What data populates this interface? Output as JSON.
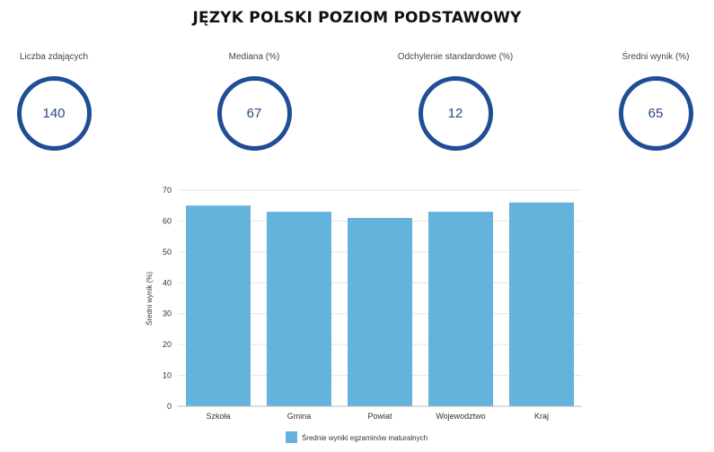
{
  "title": "JĘZYK POLSKI POZIOM PODSTAWOWY",
  "stats": [
    {
      "label": "Liczba zdających",
      "value": "140"
    },
    {
      "label": "Mediana (%)",
      "value": "67"
    },
    {
      "label": "Odchylenie standardowe (%)",
      "value": "12"
    },
    {
      "label": "Średni wynik (%)",
      "value": "65"
    }
  ],
  "colors": {
    "bar": "#63b3dc",
    "ring": "#1f4e96",
    "grid": "#e6e6e6"
  },
  "chart_data": {
    "type": "bar",
    "categories": [
      "Szkoła",
      "Gmina",
      "Powiat",
      "Wojewodztwo",
      "Kraj"
    ],
    "series": [
      {
        "name": "Średnie wyniki egzaminów maturalnych",
        "values": [
          65,
          63,
          61,
          63,
          66
        ]
      }
    ],
    "xlabel": "",
    "ylabel": "Średni wynik (%)",
    "ylim": [
      0,
      70
    ],
    "yticks": [
      0,
      10,
      20,
      30,
      40,
      50,
      60,
      70
    ],
    "grid": true,
    "legend": "bottom"
  }
}
